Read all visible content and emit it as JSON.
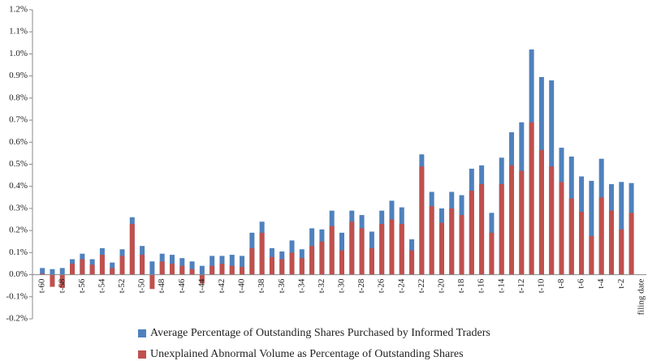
{
  "chart_data": {
    "type": "bar",
    "categories": [
      "t-60",
      null,
      "t-58",
      null,
      "t-56",
      null,
      "t-54",
      null,
      "t-52",
      null,
      "t-50",
      null,
      "t-48",
      null,
      "t-46",
      null,
      "t-44",
      null,
      "t-42",
      null,
      "t-40",
      null,
      "t-38",
      null,
      "t-36",
      null,
      "t-34",
      null,
      "t-32",
      null,
      "t-30",
      null,
      "t-28",
      null,
      "t-26",
      null,
      "t-24",
      null,
      "t-22",
      null,
      "t-20",
      null,
      "t-18",
      null,
      "t-16",
      null,
      "t-14",
      null,
      "t-12",
      null,
      "t-10",
      null,
      "t-8",
      null,
      "t-6",
      null,
      "t-4",
      null,
      "t-2",
      null,
      "filing date"
    ],
    "series": [
      {
        "name": "Average Percentage of Outstanding Shares Purchased by Informed Traders",
        "color": "#4f81bd",
        "values": [
          0.03,
          0.025,
          0.03,
          0.07,
          0.095,
          0.07,
          0.12,
          0.055,
          0.115,
          0.26,
          0.13,
          0.06,
          0.095,
          0.09,
          0.075,
          0.06,
          0.04,
          0.085,
          0.085,
          0.09,
          0.085,
          0.19,
          0.24,
          0.12,
          0.105,
          0.155,
          0.115,
          0.21,
          0.205,
          0.29,
          0.19,
          0.29,
          0.27,
          0.195,
          0.29,
          0.335,
          0.305,
          0.16,
          0.545,
          0.375,
          0.3,
          0.375,
          0.36,
          0.48,
          0.495,
          0.28,
          0.53,
          0.645,
          0.69,
          1.02,
          0.895,
          0.88,
          0.575,
          0.535,
          0.445,
          0.425,
          0.525,
          0.41,
          0.42,
          0.415,
          null
        ]
      },
      {
        "name": "Unexplained Abnormal Volume as Percentage of Outstanding Shares",
        "color": "#c0504d",
        "values": [
          0.005,
          -0.055,
          -0.06,
          0.05,
          0.07,
          0.045,
          0.09,
          0.03,
          0.085,
          0.23,
          0.09,
          -0.065,
          0.06,
          0.05,
          0.04,
          0.025,
          -0.04,
          0.04,
          0.05,
          0.04,
          0.035,
          0.12,
          0.19,
          0.08,
          0.07,
          0.1,
          0.075,
          0.13,
          0.15,
          0.22,
          0.11,
          0.24,
          0.21,
          0.12,
          0.23,
          0.25,
          0.23,
          0.11,
          0.49,
          0.31,
          0.235,
          0.3,
          0.27,
          0.38,
          0.41,
          0.19,
          0.41,
          0.495,
          0.47,
          0.69,
          0.565,
          0.49,
          0.42,
          0.345,
          0.285,
          0.175,
          0.35,
          0.29,
          0.205,
          0.28,
          null
        ]
      }
    ],
    "ylim": [
      -0.2,
      1.2
    ],
    "yticks": [
      {
        "value": -0.2,
        "label": "-0.2%"
      },
      {
        "value": -0.1,
        "label": "-0.1%"
      },
      {
        "value": 0,
        "label": "0.0%"
      },
      {
        "value": 0.1,
        "label": "0.1%"
      },
      {
        "value": 0.2,
        "label": "0.2%"
      },
      {
        "value": 0.3,
        "label": "0.3%"
      },
      {
        "value": 0.4,
        "label": "0.4%"
      },
      {
        "value": 0.5,
        "label": "0.5%"
      },
      {
        "value": 0.6,
        "label": "0.6%"
      },
      {
        "value": 0.7,
        "label": "0.7%"
      },
      {
        "value": 0.8,
        "label": "0.8%"
      },
      {
        "value": 0.9,
        "label": "0.9%"
      },
      {
        "value": 1.0,
        "label": "1.0%"
      },
      {
        "value": 1.1,
        "label": "1.1%"
      },
      {
        "value": 1.2,
        "label": "1.2%"
      }
    ],
    "grid": false,
    "legend": "bottom"
  }
}
